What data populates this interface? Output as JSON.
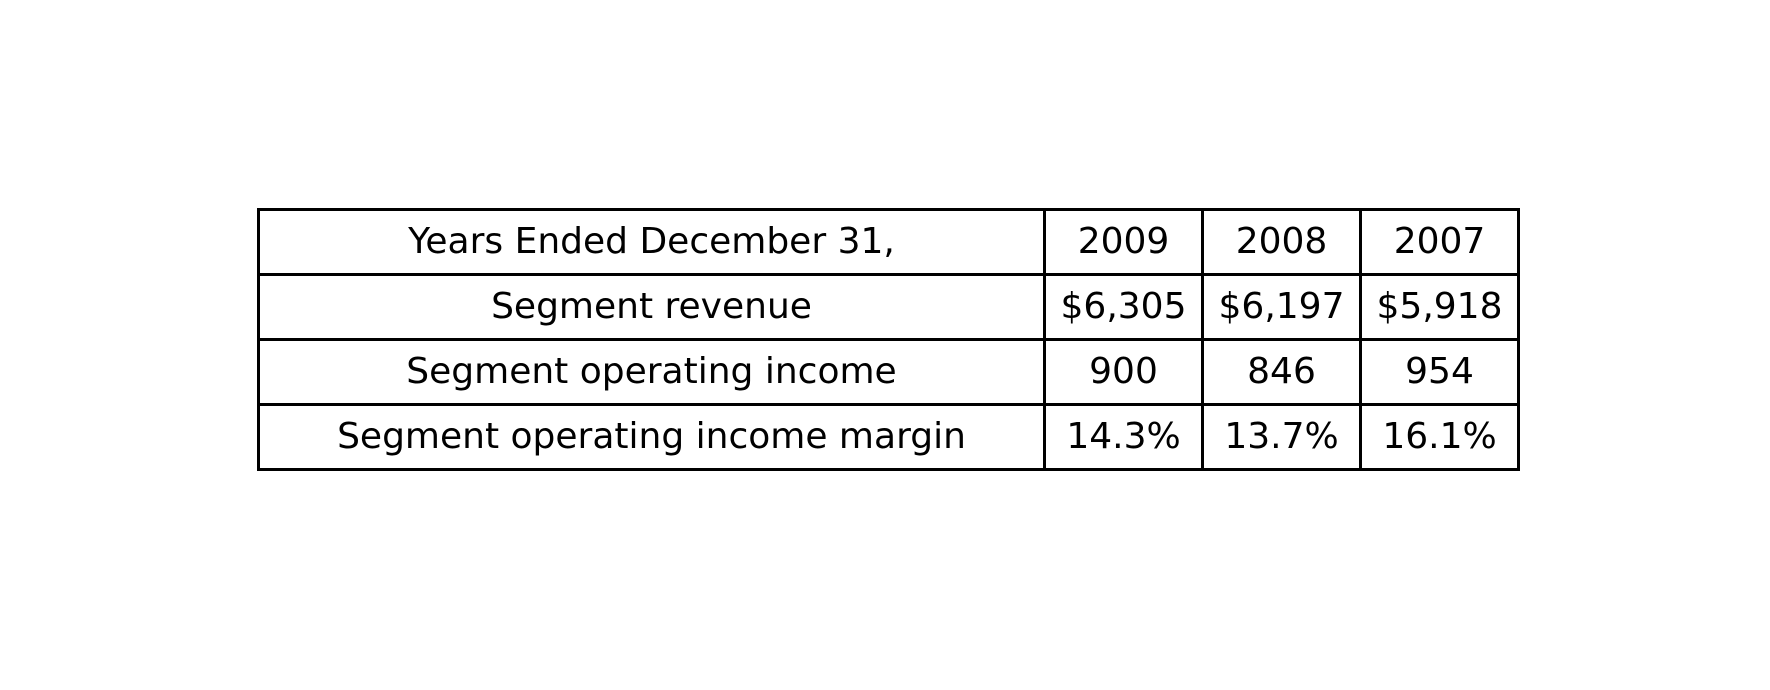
{
  "chart_data": {
    "type": "table",
    "columns": [
      "Years Ended December 31,",
      "2009",
      "2008",
      "2007"
    ],
    "rows": [
      [
        "Segment revenue",
        "$6,305",
        "$6,197",
        "$5,918"
      ],
      [
        "Segment operating income",
        "900",
        "846",
        "954"
      ],
      [
        "Segment operating income margin",
        "14.3%",
        "13.7%",
        "16.1%"
      ]
    ]
  }
}
